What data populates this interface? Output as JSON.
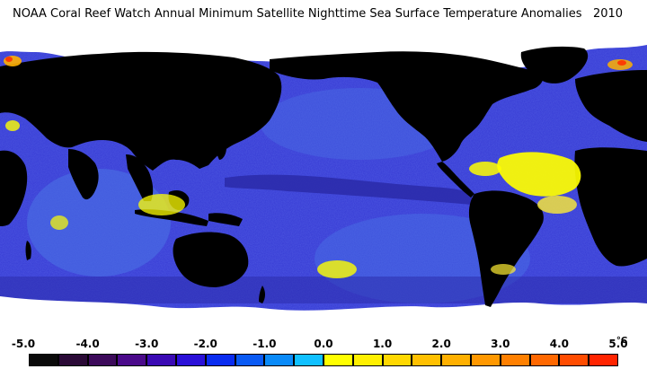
{
  "title": "NOAA Coral Reef Watch Annual Minimum Satellite Nighttime Sea Surface Temperature Anomalies   2010",
  "colors": {
    "ocean_base": "#3a3fd6",
    "ocean_deep": "#2a2aa8",
    "ocean_light": "#4a74e6",
    "equatorial_band": "#3030b8",
    "land": "#000000",
    "ice": "#ffffff",
    "warm_anomaly": "#ffff00",
    "warm_orange": "#ffb000",
    "hot": "#ff3000"
  },
  "legend": {
    "tick_labels": [
      "-5.0",
      "-4.0",
      "-3.0",
      "-2.0",
      "-1.0",
      "0.0",
      "1.0",
      "2.0",
      "3.0",
      "4.0",
      "5.0"
    ],
    "unit": "°C",
    "swatch_colors": [
      "#0a0a0a",
      "#2a0a36",
      "#3c0a5a",
      "#4a0a8a",
      "#3a0ab4",
      "#2a10d8",
      "#0a2cf0",
      "#0a5af4",
      "#0a8af8",
      "#10c0ff",
      "#ffff00",
      "#fff000",
      "#ffd800",
      "#ffc000",
      "#ffb000",
      "#ff9800",
      "#ff8000",
      "#ff6800",
      "#ff4c00",
      "#ff2400"
    ]
  }
}
